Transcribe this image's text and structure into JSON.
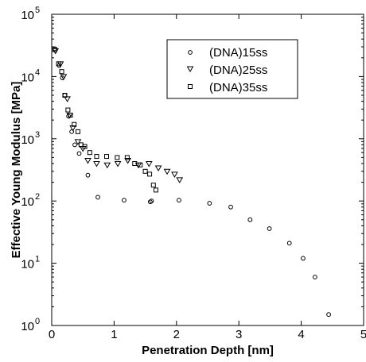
{
  "chart_data": {
    "type": "scatter",
    "xlabel": "Penetration Depth [nm]",
    "ylabel": "Effective Young Modulus [MPa]",
    "xlim": [
      0,
      5
    ],
    "ylim": [
      1,
      100000
    ],
    "yscale": "log",
    "x_ticks": [
      "0",
      "1",
      "2",
      "3",
      "4",
      "5"
    ],
    "y_ticks": [
      {
        "base": "10",
        "exp": "0"
      },
      {
        "base": "10",
        "exp": "1"
      },
      {
        "base": "10",
        "exp": "2"
      },
      {
        "base": "10",
        "exp": "3"
      },
      {
        "base": "10",
        "exp": "4"
      },
      {
        "base": "10",
        "exp": "5"
      }
    ],
    "grid": false,
    "legend_position": "top-right",
    "series": [
      {
        "name": "(DNA)15ss",
        "marker": "circle",
        "x": [
          0.05,
          0.12,
          0.17,
          0.21,
          0.27,
          0.32,
          0.37,
          0.44,
          0.58,
          0.74,
          1.16,
          1.58,
          1.6,
          2.04,
          2.53,
          2.87,
          3.18,
          3.49,
          3.81,
          4.03,
          4.22,
          4.44
        ],
        "y": [
          28000,
          15000,
          9500,
          5000,
          2300,
          1300,
          800,
          580,
          260,
          115,
          103,
          97,
          100,
          103,
          92,
          80,
          50,
          36,
          21,
          12,
          6,
          1.5
        ]
      },
      {
        "name": "(DNA)25ss",
        "marker": "triangle-down",
        "x": [
          0.06,
          0.14,
          0.19,
          0.25,
          0.29,
          0.34,
          0.42,
          0.5,
          0.58,
          0.72,
          0.89,
          1.06,
          1.22,
          1.39,
          1.56,
          1.71,
          1.85,
          1.97,
          2.05
        ],
        "y": [
          26000,
          16000,
          10000,
          4400,
          2400,
          1500,
          900,
          700,
          450,
          400,
          380,
          400,
          450,
          380,
          400,
          340,
          300,
          270,
          220
        ]
      },
      {
        "name": "(DNA)35ss",
        "marker": "square",
        "x": [
          0.05,
          0.11,
          0.16,
          0.21,
          0.26,
          0.3,
          0.36,
          0.42,
          0.47,
          0.53,
          0.61,
          0.72,
          0.88,
          1.05,
          1.21,
          1.33,
          1.42,
          1.5,
          1.57,
          1.63,
          1.67
        ],
        "y": [
          27000,
          16000,
          12000,
          5000,
          2900,
          2400,
          1700,
          1300,
          800,
          750,
          600,
          520,
          520,
          500,
          500,
          400,
          380,
          300,
          270,
          180,
          150
        ]
      }
    ]
  }
}
